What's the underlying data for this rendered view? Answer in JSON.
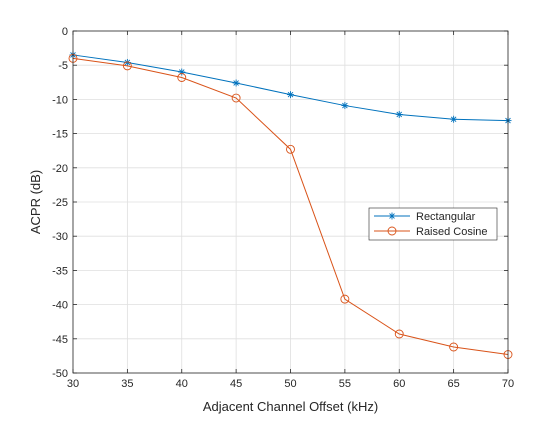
{
  "chart_data": {
    "type": "line",
    "title": "",
    "xlabel": "Adjacent Channel Offset (kHz)",
    "ylabel": "ACPR (dB)",
    "xlim": [
      30,
      70
    ],
    "ylim": [
      -50,
      0
    ],
    "xticks": [
      30,
      35,
      40,
      45,
      50,
      55,
      60,
      65,
      70
    ],
    "yticks": [
      0,
      -5,
      -10,
      -15,
      -20,
      -25,
      -30,
      -35,
      -40,
      -45,
      -50
    ],
    "grid": true,
    "legend_position": "right",
    "x": [
      30,
      35,
      40,
      45,
      50,
      55,
      60,
      65,
      70
    ],
    "series": [
      {
        "name": "Rectangular",
        "values": [
          -3.5,
          -4.6,
          -6.0,
          -7.6,
          -9.3,
          -10.9,
          -12.2,
          -12.9,
          -13.1
        ],
        "color": "#0072BD",
        "marker": "asterisk"
      },
      {
        "name": "Raised Cosine",
        "values": [
          -4.0,
          -5.1,
          -6.8,
          -9.8,
          -17.3,
          -39.2,
          -44.3,
          -46.2,
          -47.3
        ],
        "color": "#D95319",
        "marker": "circle"
      }
    ]
  }
}
